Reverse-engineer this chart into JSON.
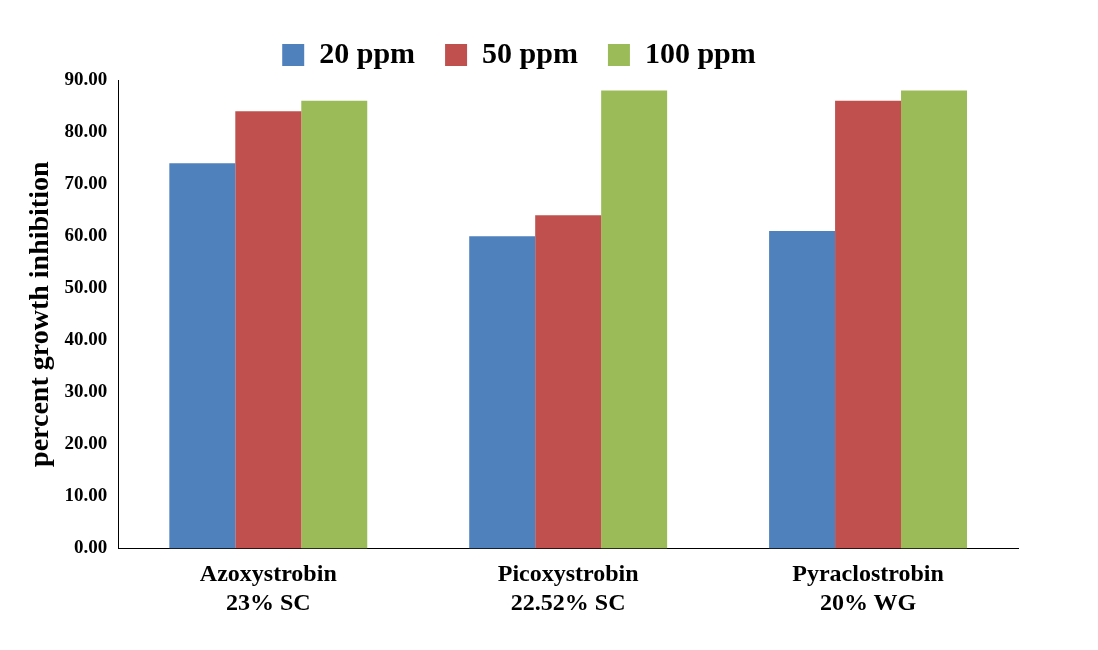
{
  "chart_data": {
    "type": "bar",
    "ylabel": "percent growth inhibition",
    "categories": [
      "Azoxystrobin\n23% SC",
      "Picoxystrobin\n22.52% SC",
      "Pyraclostrobin\n20% WG"
    ],
    "series": [
      {
        "name": "20 ppm",
        "color": "#4f81bd",
        "values": [
          74,
          60,
          61
        ]
      },
      {
        "name": "50 ppm",
        "color": "#c0504d",
        "values": [
          84,
          64,
          86
        ]
      },
      {
        "name": "100 ppm",
        "color": "#9bbb59",
        "values": [
          86,
          88,
          88
        ]
      }
    ],
    "ylim": [
      0,
      90
    ],
    "yticks": [
      {
        "value": 0,
        "label": "0.00"
      },
      {
        "value": 10,
        "label": "10.00"
      },
      {
        "value": 20,
        "label": "20.00"
      },
      {
        "value": 30,
        "label": "30.00"
      },
      {
        "value": 40,
        "label": "40.00"
      },
      {
        "value": 50,
        "label": "50.00"
      },
      {
        "value": 60,
        "label": "60.00"
      },
      {
        "value": 70,
        "label": "70.00"
      },
      {
        "value": 80,
        "label": "80.00"
      },
      {
        "value": 90,
        "label": "90.00"
      }
    ],
    "grid": false,
    "legend": "top"
  }
}
